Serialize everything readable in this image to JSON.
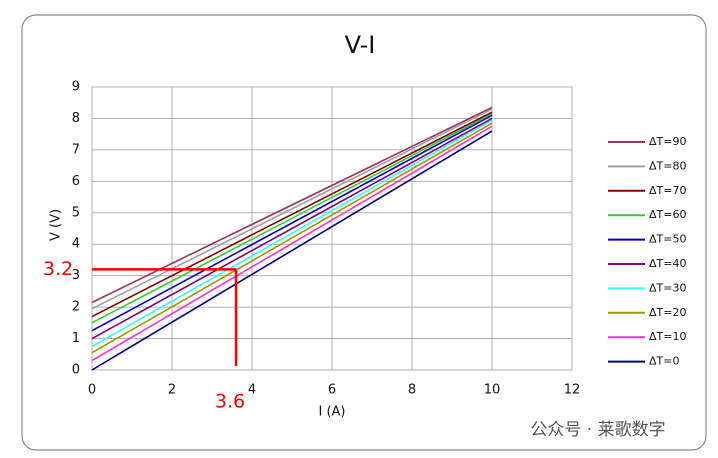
{
  "chart_data": {
    "type": "line",
    "title": "V-I",
    "x_label": "I (A)",
    "y_label": "V (V)",
    "x": [
      0,
      10
    ],
    "series": [
      {
        "name": "ΔT=90",
        "color": "#993366",
        "values": [
          2.15,
          8.35
        ]
      },
      {
        "name": "ΔT=80",
        "color": "#a0a0a0",
        "values": [
          1.95,
          8.3
        ]
      },
      {
        "name": "ΔT=70",
        "color": "#800000",
        "values": [
          1.7,
          8.2
        ]
      },
      {
        "name": "ΔT=60",
        "color": "#33cc33",
        "values": [
          1.5,
          8.15
        ]
      },
      {
        "name": "ΔT=50",
        "color": "#0000cc",
        "values": [
          1.25,
          8.1
        ]
      },
      {
        "name": "ΔT=40",
        "color": "#800080",
        "values": [
          1.0,
          8.0
        ]
      },
      {
        "name": "ΔT=30",
        "color": "#33ffff",
        "values": [
          0.75,
          7.95
        ]
      },
      {
        "name": "ΔT=20",
        "color": "#999900",
        "values": [
          0.55,
          7.85
        ]
      },
      {
        "name": "ΔT=10",
        "color": "#ff33cc",
        "values": [
          0.3,
          7.75
        ]
      },
      {
        "name": "ΔT=0",
        "color": "#000080",
        "values": [
          0.0,
          7.6
        ]
      }
    ],
    "xlim": [
      0,
      12
    ],
    "xticks": [
      0,
      2,
      4,
      6,
      8,
      10,
      12
    ],
    "ylim": [
      0,
      9
    ],
    "yticks": [
      0,
      1,
      2,
      3,
      4,
      5,
      6,
      7,
      8,
      9
    ],
    "grid": true,
    "legend": "right",
    "annotations": [
      {
        "text": "3.2",
        "y": 3.2,
        "color": "#ff0000"
      },
      {
        "text": "3.6",
        "x": 3.6,
        "color": "#ff0000"
      }
    ]
  },
  "watermark": "公众号 · 莱歌数字"
}
